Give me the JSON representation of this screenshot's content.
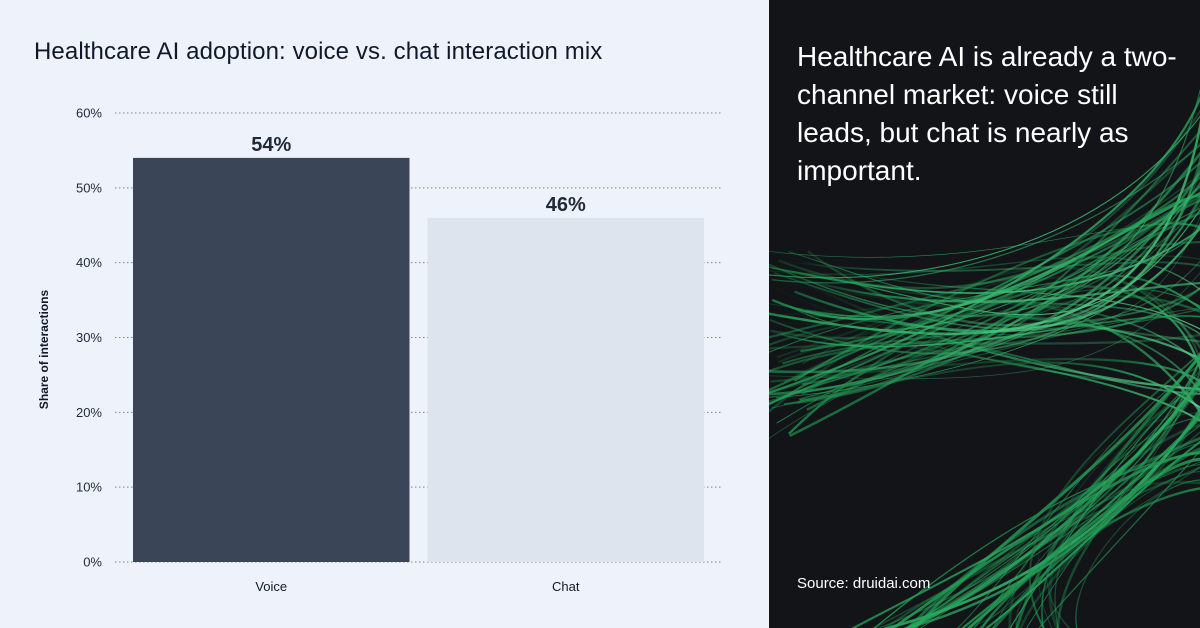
{
  "chart_data": {
    "type": "bar",
    "title": "Healthcare AI adoption: voice vs. chat interaction mix",
    "xlabel": "",
    "ylabel": "Share of interactions",
    "categories": [
      "Voice",
      "Chat"
    ],
    "values": [
      54,
      46
    ],
    "value_labels": [
      "54%",
      "46%"
    ],
    "ylim": [
      0,
      60
    ],
    "yticks": [
      0,
      10,
      20,
      30,
      40,
      50,
      60
    ],
    "ytick_labels": [
      "0%",
      "10%",
      "20%",
      "30%",
      "40%",
      "50%",
      "60%"
    ],
    "grid": "dotted horizontal",
    "colors": [
      "#3a4558",
      "#dde4ed"
    ]
  },
  "headline": "Healthcare AI is already a two-channel market: voice still leads, but chat is nearly as important.",
  "source": "Source: druidai.com",
  "theme": {
    "left_background": "#eef3fb",
    "right_background": "#121418",
    "accent": "#2fb765"
  }
}
